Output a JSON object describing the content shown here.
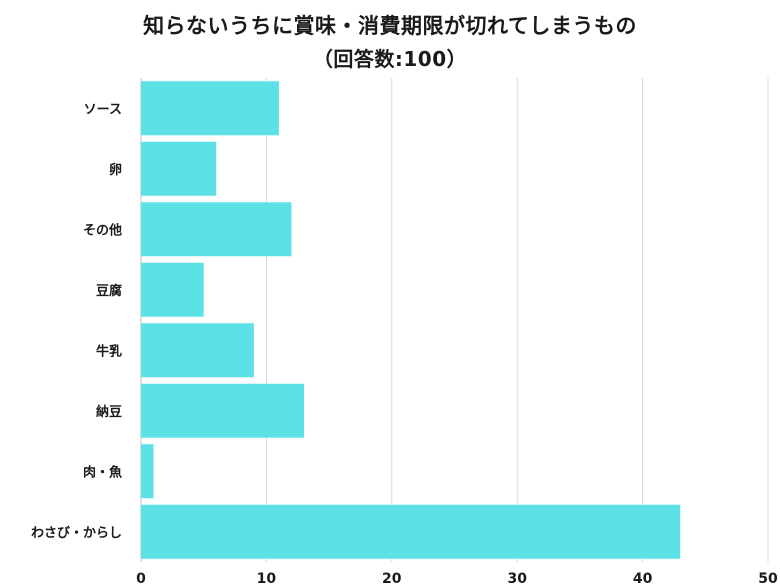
{
  "chart_data": {
    "type": "bar",
    "orientation": "horizontal",
    "title": "知らないうちに賞味・消費期限が切れてしまうもの",
    "subtitle": "（回答数:100）",
    "categories": [
      "ソース",
      "卵",
      "その他",
      "豆腐",
      "牛乳",
      "納豆",
      "肉・魚",
      "わさび・からし"
    ],
    "values": [
      11,
      6,
      12,
      5,
      9,
      13,
      1,
      43
    ],
    "xlim": [
      0,
      50
    ],
    "xticks": [
      0,
      10,
      20,
      30,
      40,
      50
    ],
    "tick_labels": [
      "0",
      "10",
      "20",
      "30",
      "40",
      "50"
    ],
    "grid": true,
    "bar_color": "#5ce1e6",
    "grid_color": "#d9d9d9"
  }
}
